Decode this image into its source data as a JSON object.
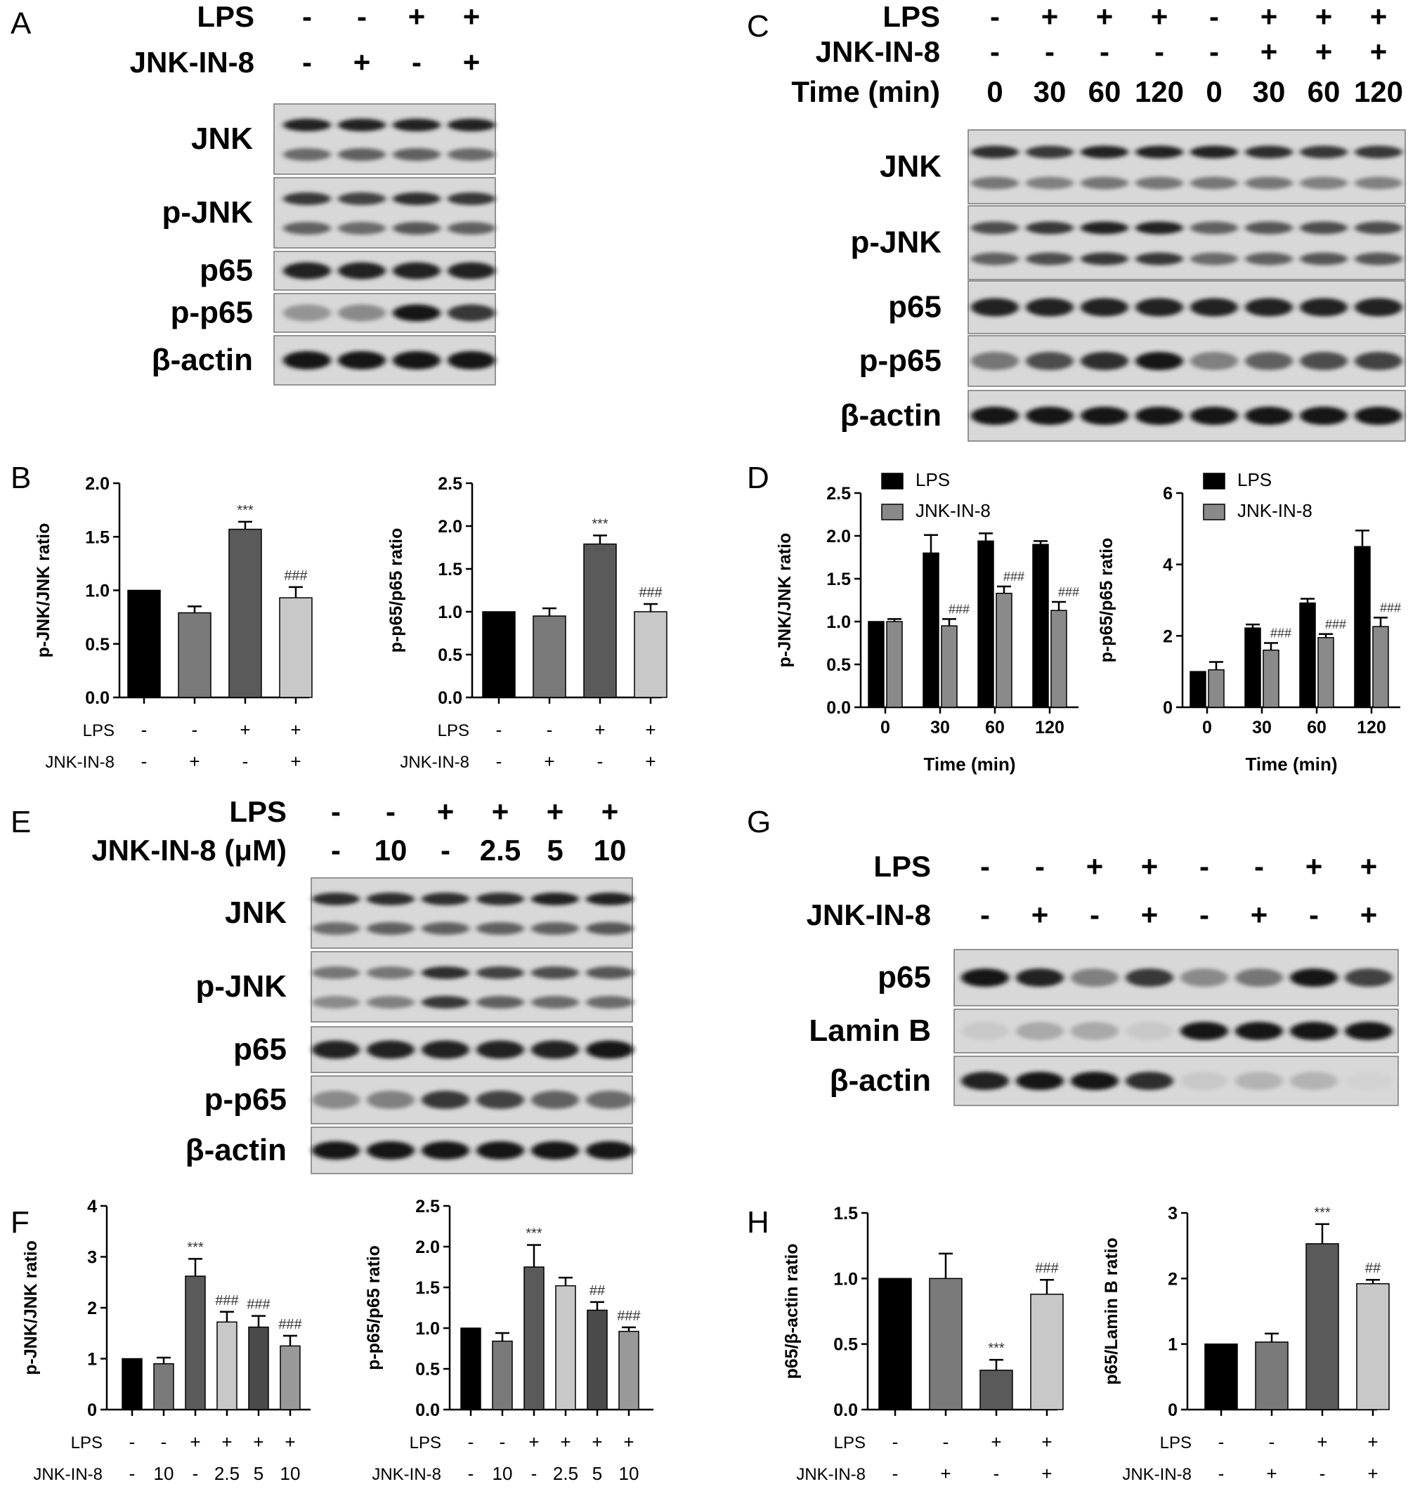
{
  "panels": [
    {
      "id": "A",
      "type": "blot",
      "header": [
        {
          "label": "LPS",
          "values": [
            "-",
            "-",
            "+",
            "+"
          ]
        },
        {
          "label": "JNK-IN-8",
          "values": [
            "-",
            "+",
            "-",
            "+"
          ]
        }
      ],
      "rows": [
        {
          "label": "JNK",
          "bands": 2,
          "intensity": [
            [
              0.9,
              0.9,
              0.9,
              0.9
            ],
            [
              0.55,
              0.6,
              0.6,
              0.55
            ]
          ]
        },
        {
          "label": "p-JNK",
          "bands": 2,
          "intensity": [
            [
              0.8,
              0.75,
              0.85,
              0.8
            ],
            [
              0.6,
              0.55,
              0.65,
              0.6
            ]
          ]
        },
        {
          "label": "p65",
          "bands": 1,
          "intensity": [
            [
              0.9,
              0.9,
              0.9,
              0.9
            ]
          ]
        },
        {
          "label": "p-p65",
          "bands": 1,
          "intensity": [
            [
              0.35,
              0.4,
              0.95,
              0.8
            ]
          ]
        },
        {
          "label": "β-actin",
          "bands": 1,
          "intensity": [
            [
              0.95,
              0.95,
              0.95,
              0.95
            ]
          ]
        }
      ]
    },
    {
      "id": "C",
      "type": "blot",
      "header": [
        {
          "label": "LPS",
          "values": [
            "-",
            "+",
            "+",
            "+",
            "-",
            "+",
            "+",
            "+"
          ]
        },
        {
          "label": "JNK-IN-8",
          "values": [
            "-",
            "-",
            "-",
            "-",
            "-",
            "+",
            "+",
            "+"
          ]
        },
        {
          "label": "Time (min)",
          "values": [
            "0",
            "30",
            "60",
            "120",
            "0",
            "30",
            "60",
            "120"
          ]
        }
      ],
      "rows": [
        {
          "label": "JNK",
          "bands": 2,
          "intensity": [
            [
              0.85,
              0.8,
              0.9,
              0.9,
              0.9,
              0.85,
              0.8,
              0.8
            ],
            [
              0.5,
              0.45,
              0.5,
              0.5,
              0.5,
              0.5,
              0.45,
              0.45
            ]
          ]
        },
        {
          "label": "p-JNK",
          "bands": 2,
          "intensity": [
            [
              0.7,
              0.8,
              0.9,
              0.9,
              0.6,
              0.65,
              0.7,
              0.7
            ],
            [
              0.6,
              0.7,
              0.8,
              0.8,
              0.55,
              0.6,
              0.65,
              0.65
            ]
          ]
        },
        {
          "label": "p65",
          "bands": 1,
          "intensity": [
            [
              0.9,
              0.9,
              0.9,
              0.9,
              0.9,
              0.9,
              0.9,
              0.9
            ]
          ]
        },
        {
          "label": "p-p65",
          "bands": 1,
          "intensity": [
            [
              0.5,
              0.7,
              0.85,
              0.95,
              0.45,
              0.6,
              0.7,
              0.75
            ]
          ]
        },
        {
          "label": "β-actin",
          "bands": 1,
          "intensity": [
            [
              0.95,
              0.95,
              0.95,
              0.95,
              0.95,
              0.95,
              0.95,
              0.95
            ]
          ]
        }
      ]
    },
    {
      "id": "E",
      "type": "blot",
      "header": [
        {
          "label": "LPS",
          "values": [
            "-",
            "-",
            "+",
            "+",
            "+",
            "+"
          ]
        },
        {
          "label": "JNK-IN-8 (μM)",
          "values": [
            "-",
            "10",
            "-",
            "2.5",
            "5",
            "10"
          ]
        }
      ],
      "rows": [
        {
          "label": "JNK",
          "bands": 2,
          "intensity": [
            [
              0.85,
              0.85,
              0.85,
              0.85,
              0.9,
              0.9
            ],
            [
              0.55,
              0.6,
              0.6,
              0.6,
              0.6,
              0.65
            ]
          ]
        },
        {
          "label": "p-JNK",
          "bands": 2,
          "intensity": [
            [
              0.5,
              0.5,
              0.85,
              0.75,
              0.7,
              0.65
            ],
            [
              0.4,
              0.45,
              0.8,
              0.6,
              0.55,
              0.55
            ]
          ]
        },
        {
          "label": "p65",
          "bands": 1,
          "intensity": [
            [
              0.9,
              0.9,
              0.9,
              0.9,
              0.9,
              0.95
            ]
          ]
        },
        {
          "label": "p-p65",
          "bands": 1,
          "intensity": [
            [
              0.4,
              0.45,
              0.8,
              0.75,
              0.6,
              0.55
            ]
          ]
        },
        {
          "label": "β-actin",
          "bands": 1,
          "intensity": [
            [
              0.95,
              0.95,
              0.95,
              0.95,
              0.95,
              0.95
            ]
          ]
        }
      ]
    },
    {
      "id": "G",
      "type": "blot",
      "header": [
        {
          "label": "LPS",
          "values": [
            "-",
            "-",
            "+",
            "+",
            "-",
            "-",
            "+",
            "+"
          ]
        },
        {
          "label": "JNK-IN-8",
          "values": [
            "-",
            "+",
            "-",
            "+",
            "-",
            "+",
            "-",
            "+"
          ]
        }
      ],
      "rows": [
        {
          "label": "p65",
          "bands": 1,
          "intensity": [
            [
              0.95,
              0.9,
              0.45,
              0.8,
              0.4,
              0.5,
              0.95,
              0.75
            ]
          ]
        },
        {
          "label": "Lamin B",
          "bands": 1,
          "intensity": [
            [
              0.1,
              0.25,
              0.25,
              0.1,
              0.98,
              0.98,
              0.98,
              0.98
            ]
          ]
        },
        {
          "label": "β-actin",
          "bands": 1,
          "intensity": [
            [
              0.9,
              0.95,
              0.95,
              0.85,
              0.1,
              0.2,
              0.2,
              0.05
            ]
          ]
        }
      ]
    }
  ],
  "chart_data": [
    {
      "id": "B1",
      "panel_letter": "B",
      "type": "bar",
      "ylabel": "p-JNK/JNK ratio",
      "ylim": [
        0,
        2.0
      ],
      "yticks": [
        "0.0",
        "0.5",
        "1.0",
        "1.5",
        "2.0"
      ],
      "values": [
        1.0,
        0.79,
        1.57,
        0.93
      ],
      "errors": [
        0,
        0.06,
        0.07,
        0.1
      ],
      "colors": [
        "#000000",
        "#7a7a7a",
        "#5a5a5a",
        "#c8c8c8"
      ],
      "annotations": [
        "",
        "",
        "***",
        "###"
      ],
      "condition_rows": [
        {
          "label": "LPS",
          "values": [
            "-",
            "-",
            "+",
            "+"
          ]
        },
        {
          "label": "JNK-IN-8",
          "values": [
            "-",
            "+",
            "-",
            "+"
          ]
        }
      ]
    },
    {
      "id": "B2",
      "type": "bar",
      "ylabel": "p-p65/p65 ratio",
      "ylim": [
        0,
        2.5
      ],
      "yticks": [
        "0.0",
        "0.5",
        "1.0",
        "1.5",
        "2.0",
        "2.5"
      ],
      "values": [
        1.0,
        0.95,
        1.79,
        1.0
      ],
      "errors": [
        0,
        0.09,
        0.1,
        0.09
      ],
      "colors": [
        "#000000",
        "#7a7a7a",
        "#5a5a5a",
        "#c8c8c8"
      ],
      "annotations": [
        "",
        "",
        "***",
        "###"
      ],
      "condition_rows": [
        {
          "label": "LPS",
          "values": [
            "-",
            "-",
            "+",
            "+"
          ]
        },
        {
          "label": "JNK-IN-8",
          "values": [
            "-",
            "+",
            "-",
            "+"
          ]
        }
      ]
    },
    {
      "id": "D1",
      "panel_letter": "D",
      "type": "bar",
      "ylabel": "p-JNK/JNK ratio",
      "xlabel": "Time (min)",
      "ylim": [
        0,
        2.5
      ],
      "yticks": [
        "0.0",
        "0.5",
        "1.0",
        "1.5",
        "2.0",
        "2.5"
      ],
      "categories": [
        "0",
        "30",
        "60",
        "120"
      ],
      "series": [
        {
          "name": "LPS",
          "color": "#000000",
          "values": [
            1.0,
            1.8,
            1.94,
            1.9
          ],
          "errors": [
            0,
            0.21,
            0.09,
            0.04
          ]
        },
        {
          "name": "JNK-IN-8",
          "color": "#8a8a8a",
          "values": [
            1.0,
            0.95,
            1.33,
            1.13
          ],
          "errors": [
            0.03,
            0.08,
            0.08,
            0.1
          ]
        }
      ],
      "annotations": [
        [
          "",
          ""
        ],
        [
          "",
          "###"
        ],
        [
          "",
          "###"
        ],
        [
          "",
          "###"
        ]
      ],
      "legend": "top-left"
    },
    {
      "id": "D2",
      "type": "bar",
      "ylabel": "p-p65/p65 ratio",
      "xlabel": "Time (min)",
      "ylim": [
        0,
        6
      ],
      "yticks": [
        "0",
        "2",
        "4",
        "6"
      ],
      "categories": [
        "0",
        "30",
        "60",
        "120"
      ],
      "series": [
        {
          "name": "LPS",
          "color": "#000000",
          "values": [
            1.0,
            2.22,
            2.92,
            4.5
          ],
          "errors": [
            0,
            0.1,
            0.12,
            0.45
          ]
        },
        {
          "name": "JNK-IN-8",
          "color": "#8a8a8a",
          "values": [
            1.05,
            1.6,
            1.95,
            2.26
          ],
          "errors": [
            0.22,
            0.2,
            0.1,
            0.25
          ]
        }
      ],
      "annotations": [
        [
          "",
          ""
        ],
        [
          "",
          "###"
        ],
        [
          "",
          "###"
        ],
        [
          "",
          "###"
        ]
      ],
      "legend": "top-left"
    },
    {
      "id": "F1",
      "panel_letter": "F",
      "type": "bar",
      "ylabel": "p-JNK/JNK ratio",
      "ylim": [
        0,
        4
      ],
      "yticks": [
        "0",
        "1",
        "2",
        "3",
        "4"
      ],
      "values": [
        1.0,
        0.9,
        2.62,
        1.72,
        1.62,
        1.25
      ],
      "errors": [
        0,
        0.12,
        0.34,
        0.2,
        0.22,
        0.2
      ],
      "colors": [
        "#000000",
        "#7a7a7a",
        "#5a5a5a",
        "#c8c8c8",
        "#4a4a4a",
        "#999999"
      ],
      "annotations": [
        "",
        "",
        "***",
        "###",
        "###",
        "###"
      ],
      "condition_rows": [
        {
          "label": "LPS",
          "values": [
            "-",
            "-",
            "+",
            "+",
            "+",
            "+"
          ]
        },
        {
          "label": "JNK-IN-8",
          "values": [
            "-",
            "10",
            "-",
            "2.5",
            "5",
            "10"
          ]
        }
      ]
    },
    {
      "id": "F2",
      "type": "bar",
      "ylabel": "p-p65/p65 ratio",
      "ylim": [
        0,
        2.5
      ],
      "yticks": [
        "0.0",
        "0.5",
        "1.0",
        "1.5",
        "2.0",
        "2.5"
      ],
      "values": [
        1.0,
        0.84,
        1.75,
        1.52,
        1.22,
        0.96
      ],
      "errors": [
        0,
        0.1,
        0.27,
        0.1,
        0.1,
        0.05
      ],
      "colors": [
        "#000000",
        "#7a7a7a",
        "#5a5a5a",
        "#c8c8c8",
        "#4a4a4a",
        "#999999"
      ],
      "annotations": [
        "",
        "",
        "***",
        "",
        "##",
        "###"
      ],
      "condition_rows": [
        {
          "label": "LPS",
          "values": [
            "-",
            "-",
            "+",
            "+",
            "+",
            "+"
          ]
        },
        {
          "label": "JNK-IN-8",
          "values": [
            "-",
            "10",
            "-",
            "2.5",
            "5",
            "10"
          ]
        }
      ]
    },
    {
      "id": "H1",
      "panel_letter": "H",
      "type": "bar",
      "ylabel": "p65/β-actin ratio",
      "ylim": [
        0,
        1.5
      ],
      "yticks": [
        "0.0",
        "0.5",
        "1.0",
        "1.5"
      ],
      "values": [
        1.0,
        1.0,
        0.3,
        0.88
      ],
      "errors": [
        0,
        0.19,
        0.08,
        0.11
      ],
      "colors": [
        "#000000",
        "#7a7a7a",
        "#5a5a5a",
        "#c8c8c8"
      ],
      "annotations": [
        "",
        "",
        "***",
        "###"
      ],
      "condition_rows": [
        {
          "label": "LPS",
          "values": [
            "-",
            "-",
            "+",
            "+"
          ]
        },
        {
          "label": "JNK-IN-8",
          "values": [
            "-",
            "+",
            "-",
            "+"
          ]
        }
      ]
    },
    {
      "id": "H2",
      "type": "bar",
      "ylabel": "p65/Lamin B ratio",
      "ylim": [
        0,
        3
      ],
      "yticks": [
        "0",
        "1",
        "2",
        "3"
      ],
      "values": [
        1.0,
        1.03,
        2.53,
        1.92
      ],
      "errors": [
        0,
        0.13,
        0.3,
        0.06
      ],
      "colors": [
        "#000000",
        "#7a7a7a",
        "#5a5a5a",
        "#c8c8c8"
      ],
      "annotations": [
        "",
        "",
        "***",
        "##"
      ],
      "condition_rows": [
        {
          "label": "LPS",
          "values": [
            "-",
            "-",
            "+",
            "+"
          ]
        },
        {
          "label": "JNK-IN-8",
          "values": [
            "-",
            "+",
            "-",
            "+"
          ]
        }
      ]
    }
  ]
}
